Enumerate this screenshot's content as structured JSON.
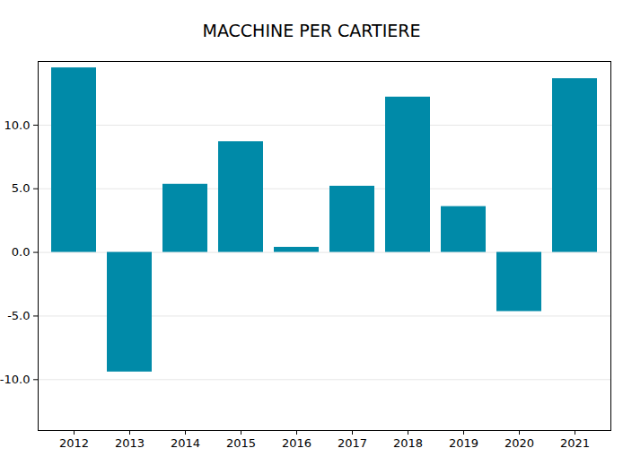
{
  "chart_data": {
    "type": "bar",
    "title": "MACCHINE PER CARTIERE",
    "categories": [
      "2012",
      "2013",
      "2014",
      "2015",
      "2016",
      "2017",
      "2018",
      "2019",
      "2020",
      "2021"
    ],
    "values": [
      14.5,
      -9.4,
      5.35,
      8.7,
      0.4,
      5.2,
      12.2,
      3.6,
      -4.65,
      13.65
    ],
    "color": "#008aa8",
    "ylim": [
      -14,
      15
    ],
    "yticks": [
      {
        "value": -10,
        "label": "-10.0"
      },
      {
        "value": -5,
        "label": "-5.0"
      },
      {
        "value": 0,
        "label": "0.0"
      },
      {
        "value": 5,
        "label": "5.0"
      },
      {
        "value": 10,
        "label": "10.0"
      }
    ],
    "grid": true
  }
}
